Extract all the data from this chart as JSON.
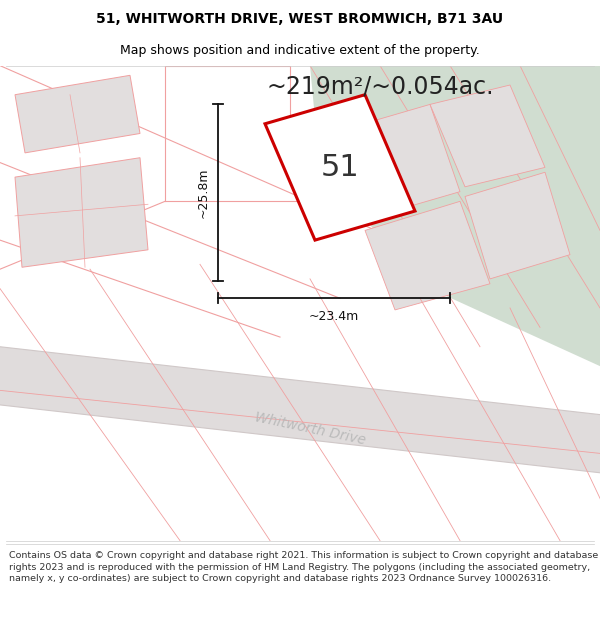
{
  "title_line1": "51, WHITWORTH DRIVE, WEST BROMWICH, B71 3AU",
  "title_line2": "Map shows position and indicative extent of the property.",
  "area_text": "~219m²/~0.054ac.",
  "label_number": "51",
  "dim_height": "~25.8m",
  "dim_width": "~23.4m",
  "road_label": "Whitworth Drive",
  "footer_lines": [
    "Contains OS data © Crown copyright and database right 2021. This information is subject to Crown copyright and database rights 2023 and is reproduced with the permission of",
    "HM Land Registry. The polygons (including the associated geometry, namely x, y co-ordinates) are subject to Crown copyright and database rights 2023 Ordnance Survey",
    "100026316."
  ],
  "map_bg": "#eeecec",
  "green_color": "#d0ddd0",
  "building_fill": "#e2dede",
  "outline_color": "#f0a0a0",
  "road_fill": "#e0dcdc",
  "road_outline": "#d0c8c8",
  "subject_color": "#cc0000",
  "dim_color": "#111111",
  "road_text_color": "#bbbbbb",
  "title_fontsize": 10,
  "subtitle_fontsize": 9,
  "area_fontsize": 17,
  "label_fontsize": 22,
  "dim_fontsize": 9,
  "footer_fontsize": 6.8
}
